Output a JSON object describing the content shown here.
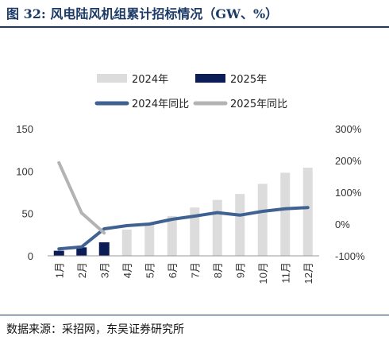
{
  "title": "图 32:  风电陆风机组累计招标情况（GW、%）",
  "source": "数据来源：采招网，东吴证券研究所",
  "chart_data": {
    "type": "bar+line",
    "categories": [
      "1月",
      "2月",
      "3月",
      "4月",
      "5月",
      "6月",
      "7月",
      "8月",
      "9月",
      "10月",
      "11月",
      "12月"
    ],
    "series": [
      {
        "name": "2024年",
        "kind": "bar",
        "axis": "left",
        "color": "#dcdcdc",
        "values": [
          2,
          8,
          15,
          31,
          37,
          47,
          57,
          66,
          73,
          85,
          98,
          104
        ]
      },
      {
        "name": "2025年",
        "kind": "bar",
        "axis": "left",
        "color": "#0c1c56",
        "values": [
          6,
          10,
          16,
          null,
          null,
          null,
          null,
          null,
          null,
          null,
          null,
          null
        ]
      },
      {
        "name": "2024年同比",
        "kind": "line",
        "axis": "right",
        "color": "#3f6293",
        "values": [
          -78,
          -72,
          -15,
          -5,
          0,
          15,
          25,
          36,
          28,
          40,
          48,
          52
        ]
      },
      {
        "name": "2025年同比",
        "kind": "line",
        "axis": "right",
        "color": "#b3b3b3",
        "values": [
          193,
          35,
          -28,
          null,
          null,
          null,
          null,
          null,
          null,
          null,
          null,
          null
        ]
      }
    ],
    "yleft": {
      "min": 0,
      "max": 150,
      "ticks": [
        0,
        50,
        100,
        150
      ]
    },
    "yright": {
      "min": -100,
      "max": 300,
      "ticks": [
        "-100%",
        "0%",
        "100%",
        "200%",
        "300%"
      ]
    },
    "legend_position": "top",
    "grid": false
  }
}
